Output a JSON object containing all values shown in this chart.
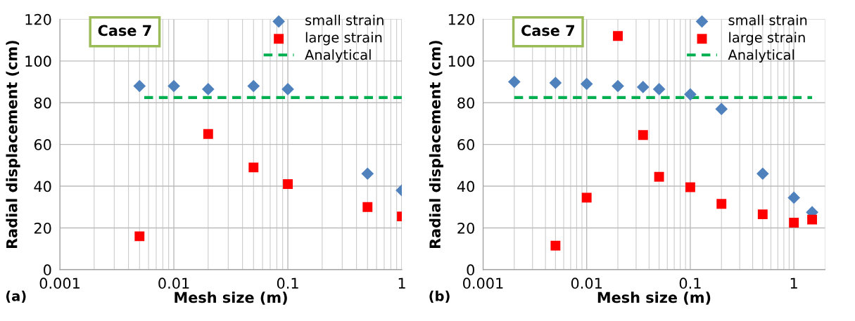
{
  "chart_data": [
    {
      "type": "scatter",
      "xlabel": "Mesh size (m)",
      "ylabel": "Radial displacement (cm)",
      "log": "x",
      "xlim": [
        0.001,
        1
      ],
      "ylim": [
        0,
        120
      ],
      "xticks": [
        0.001,
        0.01,
        0.1,
        1
      ],
      "yticks": [
        0,
        20,
        40,
        60,
        80,
        100,
        120
      ],
      "grid": true,
      "legend": "top right",
      "annotations": [
        "Case 7",
        "(a)"
      ],
      "series": [
        {
          "name": "small strain",
          "color": "#4f81bd",
          "marker": "diamond",
          "x": [
            0.005,
            0.01,
            0.02,
            0.05,
            0.1,
            0.5,
            1
          ],
          "values": [
            88,
            88,
            86.5,
            88,
            86.5,
            46,
            38
          ]
        },
        {
          "name": "large strain",
          "color": "#ff0000",
          "marker": "square",
          "x": [
            0.005,
            0.02,
            0.05,
            0.1,
            0.5,
            1
          ],
          "values": [
            16,
            65,
            49,
            41,
            30,
            25.5
          ]
        },
        {
          "name": "Analytical",
          "type": "line",
          "color": "#00b050",
          "line_style": "dashed",
          "marker": "none",
          "x": [
            0.0055,
            1
          ],
          "values": [
            82.5,
            82.5
          ]
        }
      ]
    },
    {
      "type": "scatter",
      "xlabel": "Mesh size (m)",
      "ylabel": "Radial displacement (cm)",
      "log": "x",
      "xlim": [
        0.001,
        2
      ],
      "ylim": [
        0,
        120
      ],
      "xticks": [
        0.001,
        0.01,
        0.1,
        1
      ],
      "yticks": [
        0,
        20,
        40,
        60,
        80,
        100,
        120
      ],
      "grid": true,
      "legend": "top right",
      "annotations": [
        "Case 7",
        "(b)"
      ],
      "series": [
        {
          "name": "small strain",
          "color": "#4f81bd",
          "marker": "diamond",
          "x": [
            0.002,
            0.005,
            0.01,
            0.02,
            0.035,
            0.05,
            0.1,
            0.2,
            0.5,
            1,
            1.5
          ],
          "values": [
            90,
            89.5,
            89,
            88,
            87.5,
            86.5,
            84,
            77,
            46,
            34.5,
            27.5
          ]
        },
        {
          "name": "large strain",
          "color": "#ff0000",
          "marker": "square",
          "x": [
            0.005,
            0.01,
            0.02,
            0.035,
            0.05,
            0.1,
            0.2,
            0.5,
            1,
            1.5
          ],
          "values": [
            11.5,
            34.5,
            112,
            64.5,
            44.5,
            39.5,
            31.5,
            26.5,
            22.5,
            24
          ]
        },
        {
          "name": "Analytical",
          "type": "line",
          "color": "#00b050",
          "line_style": "dashed",
          "marker": "none",
          "x": [
            0.002,
            1.5
          ],
          "values": [
            82.5,
            82.5
          ]
        }
      ]
    }
  ]
}
